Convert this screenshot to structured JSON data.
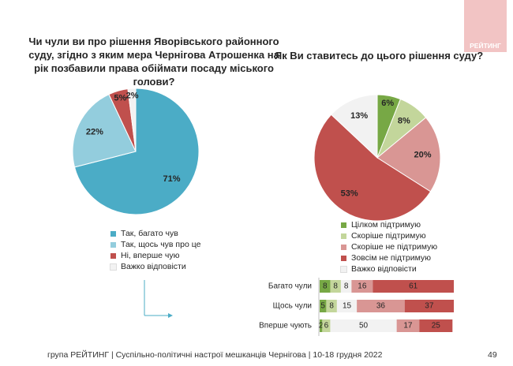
{
  "logo": "РЕЙТИНГ",
  "footer": {
    "text": "група РЕЙТИНГ | Суспільно-політичні настрої мешканців Чернігова | 10-18 грудня 2022",
    "page": "49"
  },
  "chart_data": [
    {
      "type": "pie",
      "title": "Чи чули ви про рішення Яворівського районного суду, згідно з яким мера Чернігова Атрошенка на рік позбавили права обіймати посаду міського голови?",
      "categories": [
        "Так, багато чув",
        "Так, щось чув про це",
        "Ні, вперше чую",
        "Важко відповісти"
      ],
      "values": [
        71,
        22,
        5,
        2
      ],
      "value_labels": [
        "71%",
        "22%",
        "5%",
        "2%"
      ],
      "colors": [
        "#4bacc6",
        "#93cddd",
        "#c0504d",
        "#f2f2f2"
      ]
    },
    {
      "type": "pie",
      "title": "Як Ви ставитесь до цього рішення суду?",
      "categories": [
        "Цілком підтримую",
        "Скоріше підтримую",
        "Скоріше не підтримую",
        "Зовсім не підтримую",
        "Важко відповісти"
      ],
      "values": [
        6,
        8,
        20,
        53,
        13
      ],
      "value_labels": [
        "6%",
        "8%",
        "20%",
        "53%",
        "13%"
      ],
      "colors": [
        "#77a845",
        "#c3d69b",
        "#d99694",
        "#c0504d",
        "#f2f2f2"
      ]
    },
    {
      "type": "stacked-bar",
      "categories": [
        "Багато чули",
        "Щось чули",
        "Вперше чують"
      ],
      "series": [
        {
          "color": "#77a845",
          "values": [
            8,
            5,
            2
          ]
        },
        {
          "color": "#c3d69b",
          "values": [
            8,
            8,
            6
          ]
        },
        {
          "color": "#f2f2f2",
          "values": [
            8,
            15,
            50
          ]
        },
        {
          "color": "#d99694",
          "values": [
            16,
            36,
            17
          ]
        },
        {
          "color": "#c0504d",
          "values": [
            61,
            37,
            25
          ]
        }
      ]
    }
  ]
}
